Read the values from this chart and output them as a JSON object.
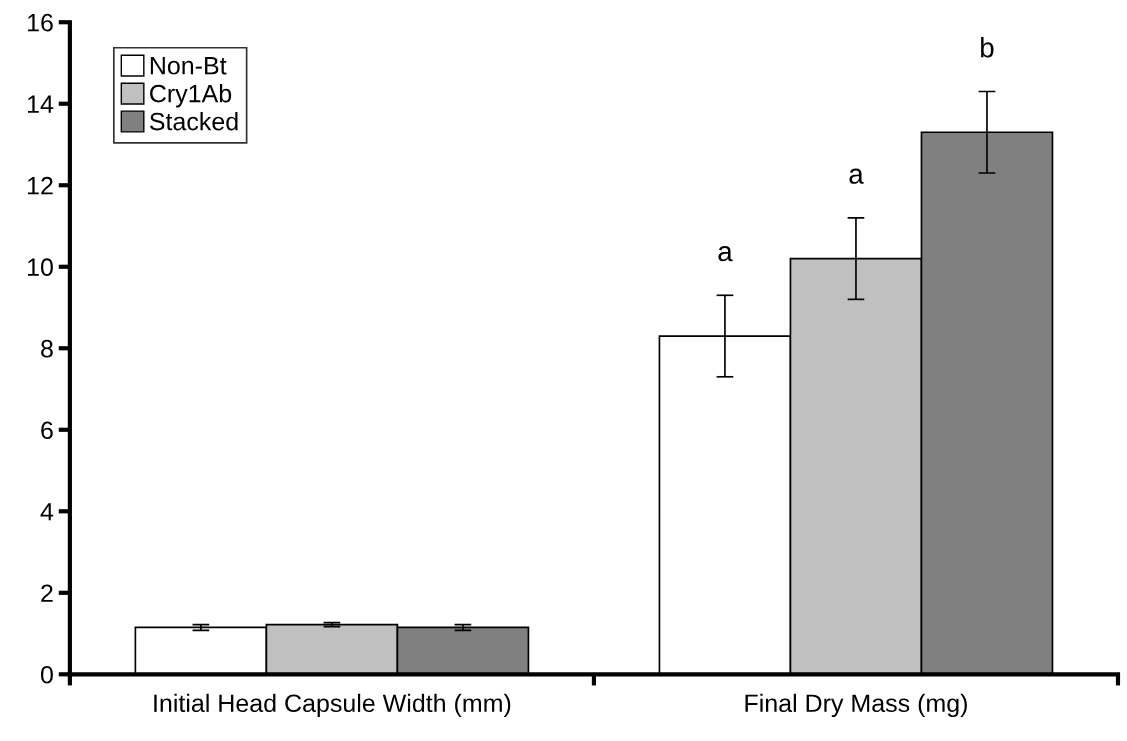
{
  "chart_data": {
    "type": "bar",
    "categories": [
      "Initial Head Capsule Width (mm)",
      "Final Dry Mass (mg)"
    ],
    "series": [
      {
        "name": "Non-Bt",
        "color": "#ffffff",
        "values": [
          1.15,
          8.3
        ],
        "errors": [
          0.07,
          1.0
        ],
        "value_labels": [
          null,
          "a"
        ]
      },
      {
        "name": "Cry1Ab",
        "color": "#c0c0c0",
        "values": [
          1.22,
          10.2
        ],
        "errors": [
          0.05,
          1.0
        ],
        "value_labels": [
          null,
          "a"
        ]
      },
      {
        "name": "Stacked",
        "color": "#808080",
        "values": [
          1.15,
          13.3
        ],
        "errors": [
          0.07,
          1.0
        ],
        "value_labels": [
          null,
          "b"
        ]
      }
    ],
    "ylim": [
      0,
      16
    ],
    "yticks": [
      0,
      2,
      4,
      6,
      8,
      10,
      12,
      14,
      16
    ],
    "grid": false,
    "legend": "top left"
  }
}
